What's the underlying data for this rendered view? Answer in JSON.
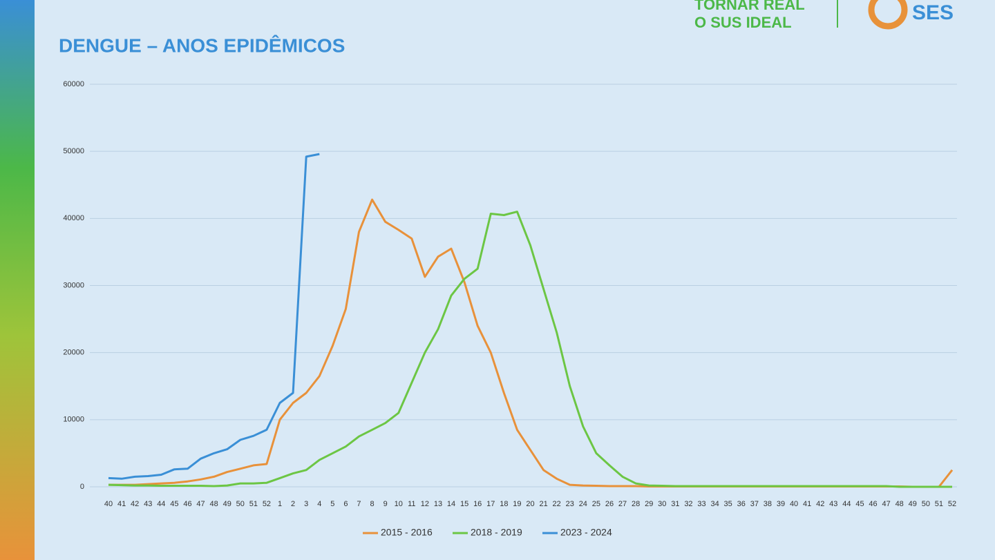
{
  "brand": {
    "slogan": [
      "TORNAR REAL",
      "O SUS IDEAL"
    ],
    "logo": "SES"
  },
  "chart_data": {
    "type": "line",
    "title": "DENGUE – ANOS EPIDÊMICOS",
    "categories": [
      "40",
      "41",
      "42",
      "43",
      "44",
      "45",
      "46",
      "47",
      "48",
      "49",
      "50",
      "51",
      "52",
      "1",
      "2",
      "3",
      "4",
      "5",
      "6",
      "7",
      "8",
      "9",
      "10",
      "11",
      "12",
      "13",
      "14",
      "15",
      "16",
      "17",
      "18",
      "19",
      "20",
      "21",
      "22",
      "23",
      "24",
      "25",
      "26",
      "27",
      "28",
      "29",
      "30",
      "31",
      "32",
      "33",
      "34",
      "35",
      "36",
      "37",
      "38",
      "39",
      "40",
      "41",
      "42",
      "43",
      "44",
      "45",
      "46",
      "47",
      "48",
      "49",
      "50",
      "51",
      "52"
    ],
    "series": [
      {
        "name": "2015 - 2016",
        "color": "#e8913a",
        "values": [
          300,
          300,
          300,
          400,
          500,
          600,
          800,
          1100,
          1500,
          2200,
          2700,
          3200,
          3400,
          10000,
          12500,
          14000,
          16500,
          21000,
          26500,
          38000,
          42800,
          39500,
          38300,
          37000,
          31300,
          34300,
          35500,
          30500,
          24000,
          20000,
          14000,
          8500,
          5500,
          2500,
          1200,
          300,
          200,
          150,
          100,
          100,
          100,
          50,
          50,
          50,
          50,
          50,
          50,
          50,
          50,
          50,
          50,
          50,
          50,
          50,
          50,
          50,
          50,
          50,
          50,
          50,
          50,
          0,
          0,
          0,
          2500
        ]
      },
      {
        "name": "2018 - 2019",
        "color": "#6cc644",
        "values": [
          300,
          250,
          200,
          200,
          150,
          150,
          150,
          150,
          100,
          200,
          500,
          500,
          600,
          1300,
          2000,
          2500,
          4000,
          5000,
          6000,
          7500,
          8500,
          9500,
          11000,
          15500,
          20000,
          23500,
          28500,
          31000,
          32500,
          40700,
          40500,
          41000,
          36000,
          29500,
          23000,
          15000,
          9000,
          5000,
          3200,
          1500,
          500,
          200,
          150,
          100,
          100,
          100,
          100,
          100,
          100,
          100,
          100,
          100,
          100,
          100,
          100,
          100,
          100,
          100,
          100,
          100,
          0,
          0,
          0,
          0,
          0
        ]
      },
      {
        "name": "2023 - 2024",
        "color": "#3a8fd6",
        "values": [
          1300,
          1200,
          1500,
          1600,
          1800,
          2600,
          2700,
          4200,
          5000,
          5600,
          7000,
          7600,
          8500,
          12500,
          14000,
          49200,
          49600,
          null,
          null,
          null,
          null,
          null,
          null,
          null,
          null,
          null,
          null,
          null,
          null,
          null,
          null,
          null,
          null,
          null,
          null,
          null,
          null,
          null,
          null,
          null,
          null,
          null,
          null,
          null,
          null,
          null,
          null,
          null,
          null,
          null,
          null,
          null,
          null,
          null,
          null,
          null,
          null,
          null,
          null,
          null,
          null,
          null,
          null,
          null,
          null
        ]
      }
    ],
    "ylim": [
      0,
      60000
    ],
    "yticks": [
      0,
      10000,
      20000,
      30000,
      40000,
      50000,
      60000
    ],
    "grid": true,
    "legend": "bottom"
  }
}
